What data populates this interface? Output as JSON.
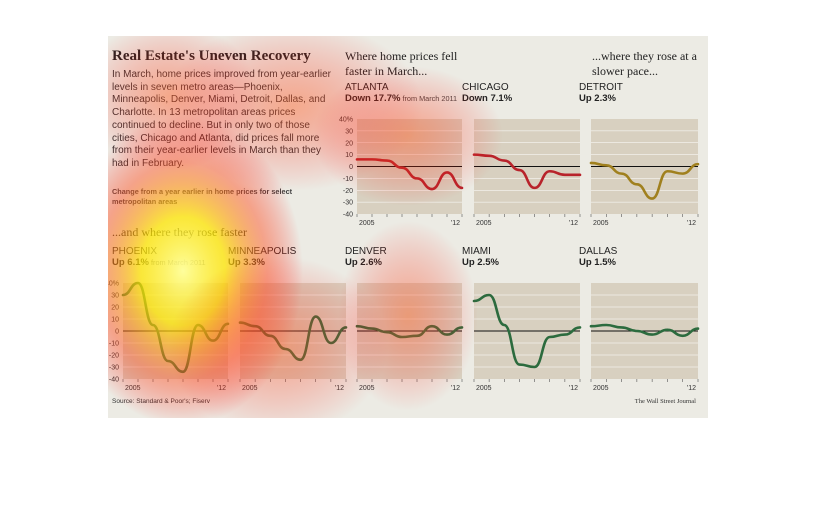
{
  "title": "Real Estate's Uneven Recovery",
  "intro": "In March, home prices improved from year-earlier levels in seven metro areas—Phoenix, Minneapolis, Denver, Miami, Detroit, Dallas, and Charlotte. In 13 metropolitan areas prices continued to decline. But in only two of those cities, Chicago and Atlanta, did prices fall more from their year-earlier levels in March than they had in February.",
  "caption": "Change from a year earlier in home prices for select metropolitan areas",
  "headings": {
    "falling": "Where home prices fell faster in March...",
    "slower": "...where they rose at a slower pace...",
    "faster": "...and where they rose faster"
  },
  "source": "Source: Standard & Poor's; Fiserv",
  "brand": "The Wall Street Journal",
  "colors": {
    "down": "#b8232b",
    "slow": "#a0801e",
    "fast": "#2c6b3e",
    "plot_bg": "#d8d0c0",
    "grid": "#ffffff",
    "zero": "#111111",
    "heat_hot": "#ffff66",
    "heat_mid": "#ff6a22"
  },
  "chart_data": [
    {
      "type": "line",
      "city": "ATLANTA",
      "change": "Down 17.7%",
      "note": "from March 2011",
      "group": "down",
      "x": [
        2005,
        2006,
        2007,
        2008,
        2009,
        2010,
        2011,
        2012
      ],
      "values": [
        6,
        6,
        5,
        -1,
        -10,
        -19,
        -5,
        -18
      ],
      "ylim": [
        -40,
        40
      ],
      "yticks": [
        40,
        30,
        20,
        10,
        0,
        -10,
        -20,
        -30,
        -40
      ],
      "ytick_labels": [
        "40%",
        "30",
        "20",
        "10",
        "0",
        "-10",
        "-20",
        "-30",
        "-40"
      ],
      "xtick_labels": [
        "2005",
        "'12"
      ]
    },
    {
      "type": "line",
      "city": "CHICAGO",
      "change": "Down 7.1%",
      "group": "down",
      "x": [
        2005,
        2006,
        2007,
        2008,
        2009,
        2010,
        2011,
        2012
      ],
      "values": [
        10,
        9,
        5,
        -3,
        -18,
        -4,
        -7,
        -7
      ],
      "ylim": [
        -40,
        40
      ],
      "xtick_labels": [
        "2005",
        "'12"
      ]
    },
    {
      "type": "line",
      "city": "DETROIT",
      "change": "Up 2.3%",
      "group": "slow",
      "x": [
        2005,
        2006,
        2007,
        2008,
        2009,
        2010,
        2011,
        2012
      ],
      "values": [
        3,
        1,
        -6,
        -15,
        -27,
        -4,
        -6,
        2
      ],
      "ylim": [
        -40,
        40
      ],
      "xtick_labels": [
        "2005",
        "'12"
      ]
    },
    {
      "type": "line",
      "city": "PHOENIX",
      "change": "Up 6.1%",
      "note": "from March 2011",
      "group": "fast",
      "x": [
        2005,
        2006,
        2007,
        2008,
        2009,
        2010,
        2011,
        2012
      ],
      "values": [
        30,
        40,
        5,
        -25,
        -34,
        5,
        -8,
        6
      ],
      "ylim": [
        -40,
        40
      ],
      "yticks": [
        40,
        30,
        20,
        10,
        0,
        -10,
        -20,
        -30,
        -40
      ],
      "ytick_labels": [
        "40%",
        "30",
        "20",
        "10",
        "0",
        "-10",
        "-20",
        "-30",
        "-40"
      ],
      "xtick_labels": [
        "2005",
        "'12"
      ]
    },
    {
      "type": "line",
      "city": "MINNEAPOLIS",
      "change": "Up 3.3%",
      "group": "fast",
      "x": [
        2005,
        2006,
        2007,
        2008,
        2009,
        2010,
        2011,
        2012
      ],
      "values": [
        7,
        4,
        -4,
        -15,
        -24,
        12,
        -10,
        3
      ],
      "ylim": [
        -40,
        40
      ],
      "xtick_labels": [
        "2005",
        "'12"
      ]
    },
    {
      "type": "line",
      "city": "DENVER",
      "change": "Up 2.6%",
      "group": "fast",
      "x": [
        2005,
        2006,
        2007,
        2008,
        2009,
        2010,
        2011,
        2012
      ],
      "values": [
        4,
        2,
        -1,
        -5,
        -4,
        4,
        -3,
        3
      ],
      "ylim": [
        -40,
        40
      ],
      "xtick_labels": [
        "2005",
        "'12"
      ]
    },
    {
      "type": "line",
      "city": "MIAMI",
      "change": "Up 2.5%",
      "group": "fast",
      "x": [
        2005,
        2006,
        2007,
        2008,
        2009,
        2010,
        2011,
        2012
      ],
      "values": [
        25,
        30,
        5,
        -28,
        -30,
        -5,
        -3,
        3
      ],
      "ylim": [
        -40,
        40
      ],
      "xtick_labels": [
        "2005",
        "'12"
      ]
    },
    {
      "type": "line",
      "city": "DALLAS",
      "change": "Up 1.5%",
      "group": "fast",
      "x": [
        2005,
        2006,
        2007,
        2008,
        2009,
        2010,
        2011,
        2012
      ],
      "values": [
        4,
        5,
        3,
        0,
        -3,
        1,
        -4,
        2
      ],
      "ylim": [
        -40,
        40
      ],
      "xtick_labels": [
        "2005",
        "'12"
      ]
    }
  ]
}
